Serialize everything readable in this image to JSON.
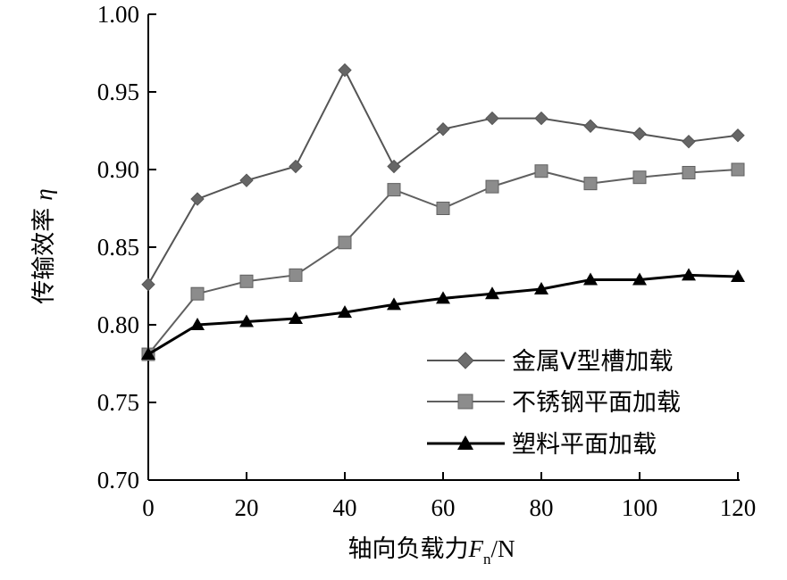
{
  "chart_data": {
    "type": "line",
    "xlabel_parts": {
      "prefix": "轴向负载力",
      "var": "F",
      "sub": "n",
      "suffix": "/N"
    },
    "ylabel_parts": {
      "prefix": "传输效率",
      "var": "η"
    },
    "xlim": [
      0,
      120
    ],
    "ylim": [
      0.7,
      1.0
    ],
    "x_ticks": [
      "0",
      "20",
      "40",
      "60",
      "80",
      "100",
      "120"
    ],
    "y_ticks": [
      "0.70",
      "0.75",
      "0.80",
      "0.85",
      "0.90",
      "0.95",
      "1.00"
    ],
    "x": [
      0,
      10,
      20,
      30,
      40,
      50,
      60,
      70,
      80,
      90,
      100,
      110,
      120
    ],
    "grid": false,
    "legend_position": "bottom-right",
    "series": [
      {
        "name": "金属V型槽加载",
        "marker": "diamond",
        "color": "#666666",
        "line_color": "#555555",
        "values": [
          0.826,
          0.881,
          0.893,
          0.902,
          0.964,
          0.902,
          0.926,
          0.933,
          0.933,
          0.928,
          0.923,
          0.918,
          0.922
        ]
      },
      {
        "name": "不锈钢平面加载",
        "marker": "square",
        "color": "#8c8c8c",
        "line_color": "#606060",
        "values": [
          0.781,
          0.82,
          0.828,
          0.832,
          0.853,
          0.887,
          0.875,
          0.889,
          0.899,
          0.891,
          0.895,
          0.898,
          0.9
        ]
      },
      {
        "name": "塑料平面加载",
        "marker": "triangle",
        "color": "#000000",
        "line_color": "#000000",
        "values": [
          0.781,
          0.8,
          0.802,
          0.804,
          0.808,
          0.813,
          0.817,
          0.82,
          0.823,
          0.829,
          0.829,
          0.832,
          0.831
        ]
      }
    ]
  }
}
